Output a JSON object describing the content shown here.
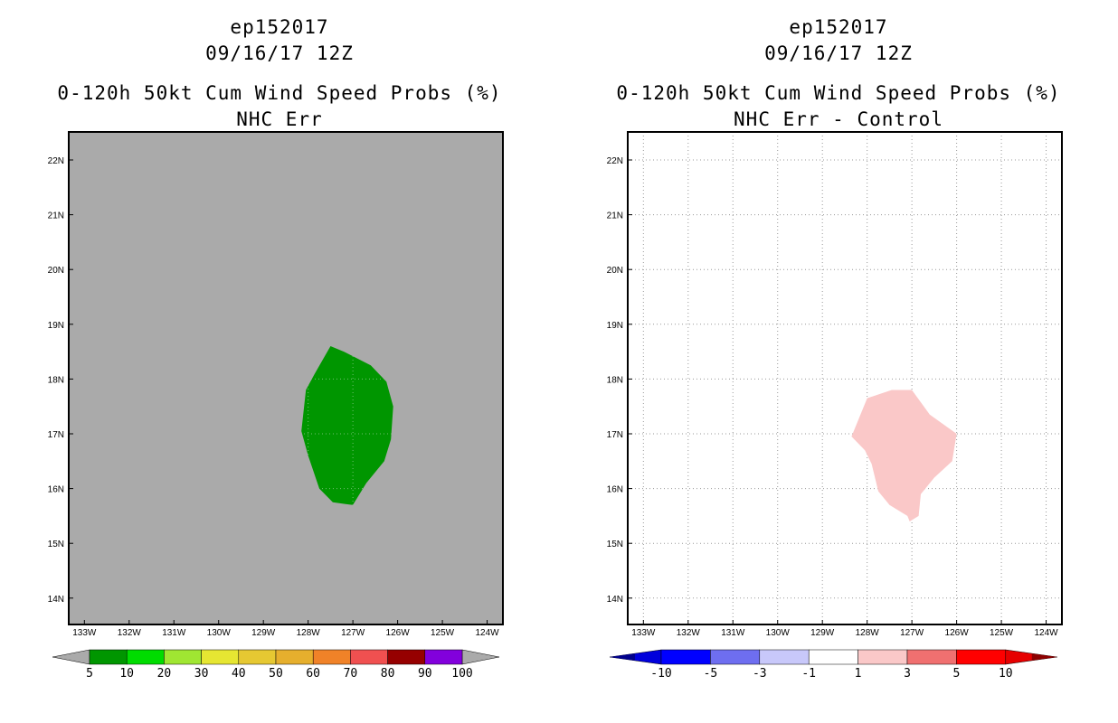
{
  "panels": [
    {
      "id": "left",
      "storm_id": "ep152017",
      "datetime": "09/16/17 12Z",
      "product": "0-120h 50kt Cum Wind Speed Probs (%)",
      "subtitle": "NHC Err",
      "background_color": "#aaaaaa",
      "grid_visible": false,
      "lon_ticks": [
        "133W",
        "132W",
        "131W",
        "130W",
        "129W",
        "128W",
        "127W",
        "126W",
        "125W",
        "124W"
      ],
      "lat_ticks": [
        "22N",
        "21N",
        "20N",
        "19N",
        "18N",
        "17N",
        "16N",
        "15N",
        "14N"
      ],
      "shaded_region": {
        "bin": "5-10",
        "color": "#009600",
        "outline_lon_lat": [
          [
            -127.5,
            18.6
          ],
          [
            -127.2,
            18.5
          ],
          [
            -126.6,
            18.25
          ],
          [
            -126.25,
            17.95
          ],
          [
            -126.1,
            17.5
          ],
          [
            -126.15,
            16.9
          ],
          [
            -126.3,
            16.5
          ],
          [
            -126.7,
            16.1
          ],
          [
            -127.0,
            15.7
          ],
          [
            -127.45,
            15.75
          ],
          [
            -127.75,
            16.0
          ],
          [
            -128.0,
            16.6
          ],
          [
            -128.15,
            17.05
          ],
          [
            -128.05,
            17.8
          ],
          [
            -127.85,
            18.1
          ]
        ]
      },
      "colorbar": {
        "labels": [
          "5",
          "10",
          "20",
          "30",
          "40",
          "50",
          "60",
          "70",
          "80",
          "90",
          "100"
        ],
        "colors": [
          "#009600",
          "#00dc00",
          "#a0e632",
          "#e6e632",
          "#e6c832",
          "#e6af2d",
          "#f08228",
          "#f05050",
          "#960000",
          "#8200dc"
        ],
        "end_arrow_color": "#aaaaaa"
      }
    },
    {
      "id": "right",
      "storm_id": "ep152017",
      "datetime": "09/16/17 12Z",
      "product": "0-120h 50kt Cum Wind Speed Probs (%)",
      "subtitle": "NHC Err - Control",
      "background_color": "#ffffff",
      "grid_visible": true,
      "lon_ticks": [
        "133W",
        "132W",
        "131W",
        "130W",
        "129W",
        "128W",
        "127W",
        "126W",
        "125W",
        "124W"
      ],
      "lat_ticks": [
        "22N",
        "21N",
        "20N",
        "19N",
        "18N",
        "17N",
        "16N",
        "15N",
        "14N"
      ],
      "shaded_region": {
        "bin": "1-3",
        "color": "#fac8c8",
        "outline_lon_lat": [
          [
            -128.0,
            17.65
          ],
          [
            -127.45,
            17.8
          ],
          [
            -127.0,
            17.8
          ],
          [
            -126.6,
            17.35
          ],
          [
            -126.0,
            17.0
          ],
          [
            -126.1,
            16.5
          ],
          [
            -126.5,
            16.2
          ],
          [
            -126.8,
            15.9
          ],
          [
            -126.85,
            15.5
          ],
          [
            -127.05,
            15.4
          ],
          [
            -127.1,
            15.5
          ],
          [
            -127.5,
            15.7
          ],
          [
            -127.75,
            15.95
          ],
          [
            -127.9,
            16.45
          ],
          [
            -128.05,
            16.7
          ],
          [
            -128.35,
            16.95
          ]
        ]
      },
      "colorbar": {
        "labels": [
          "-10",
          "-5",
          "-3",
          "-1",
          "1",
          "3",
          "5",
          "10"
        ],
        "colors": [
          "#0000dc",
          "#0000ff",
          "#6e6ef0",
          "#c8c8fa",
          "#ffffff",
          "#fac8c8",
          "#f07070",
          "#ff0000",
          "#e60000"
        ],
        "left_arrow_color": "#00008c",
        "right_arrow_color": "#8c0000"
      }
    }
  ]
}
